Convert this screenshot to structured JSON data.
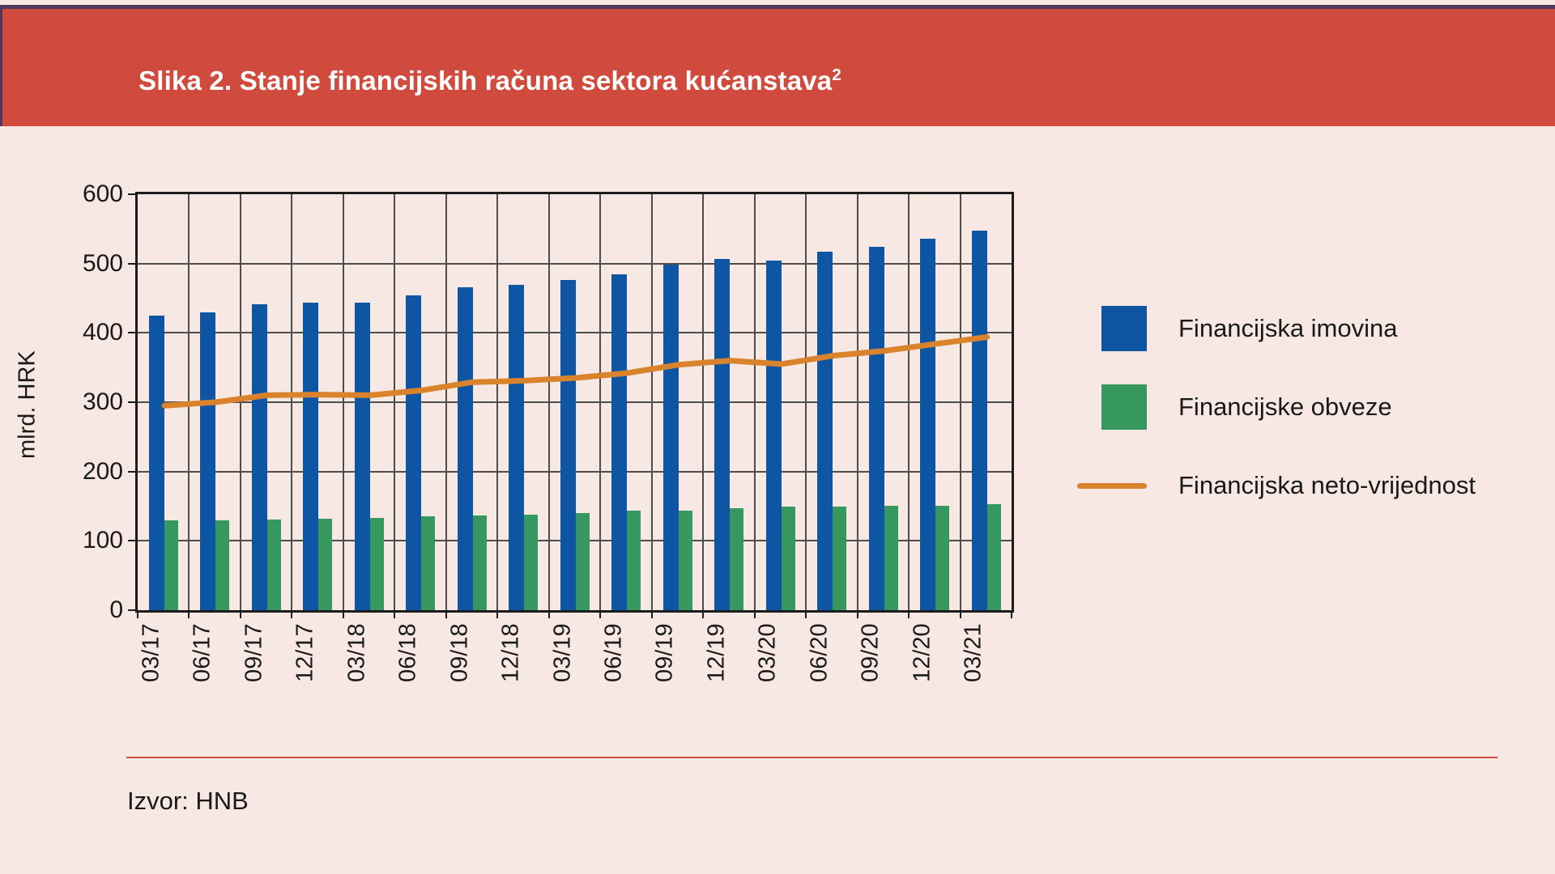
{
  "header": {
    "title": "Slika 2. Stanje financijskih računa sektora kućanstava",
    "title_sup": "2"
  },
  "chart_data": {
    "type": "bar",
    "title": "Stanje financijskih računa sektora kućanstava",
    "categories": [
      "03/17",
      "06/17",
      "09/17",
      "12/17",
      "03/18",
      "06/18",
      "09/18",
      "12/18",
      "03/19",
      "06/19",
      "09/19",
      "12/19",
      "03/20",
      "06/20",
      "09/20",
      "12/20",
      "03/21"
    ],
    "series": [
      {
        "name": "Financijska imovina",
        "kind": "bar",
        "color": "#0e55a3",
        "values": [
          425,
          430,
          441,
          443,
          443,
          454,
          466,
          469,
          476,
          485,
          499,
          507,
          504,
          517,
          524,
          536,
          547
        ]
      },
      {
        "name": "Financijske obveze",
        "kind": "bar",
        "color": "#36985e",
        "values": [
          130,
          130,
          131,
          132,
          133,
          135,
          136,
          138,
          140,
          143,
          144,
          147,
          149,
          150,
          151,
          151,
          153
        ]
      },
      {
        "name": "Financijska neto-vrijednost",
        "kind": "line",
        "color": "#d9832d",
        "values": [
          295,
          300,
          310,
          311,
          310,
          317,
          329,
          331,
          335,
          342,
          354,
          360,
          355,
          367,
          374,
          384,
          394
        ]
      }
    ],
    "xlabel": "",
    "ylabel": "mlrd. HRK",
    "ylim": [
      0,
      600
    ],
    "y_ticks": [
      0,
      100,
      200,
      300,
      400,
      500,
      600
    ],
    "grid": "horizontal every 100, vertical at quarter boundaries",
    "legend_position": "right"
  },
  "footer": {
    "source": "Izvor: HNB"
  },
  "colors": {
    "page_background": "#f8e8e3",
    "header_background": "#d04b3d",
    "header_top_border": "#50395a",
    "title_text": "#ffffff",
    "gridline": "#4d4d4d",
    "axis": "#1c1c1c",
    "divider": "#cf4f3a",
    "text": "#1a1a1a"
  }
}
